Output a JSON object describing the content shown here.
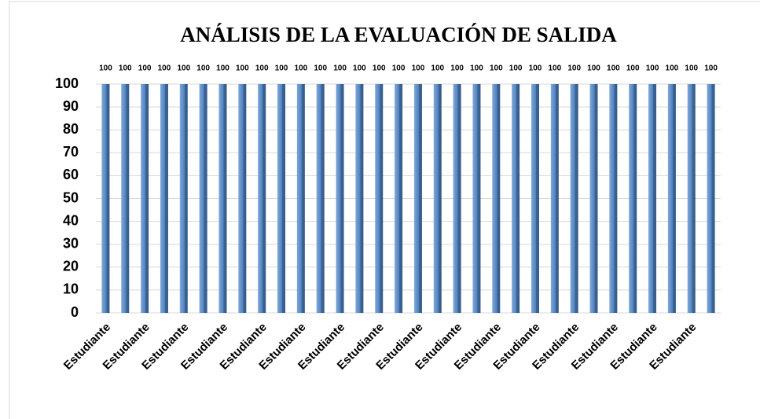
{
  "chart_data": {
    "type": "bar",
    "title": "ANÁLISIS DE LA EVALUACIÓN  DE SALIDA",
    "categories": [
      "Estudiante",
      null,
      "Estudiante",
      null,
      "Estudiante",
      null,
      "Estudiante",
      null,
      "Estudiante",
      null,
      "Estudiante",
      null,
      "Estudiante",
      null,
      "Estudiante",
      null,
      "Estudiante",
      null,
      "Estudiante",
      null,
      "Estudiante",
      null,
      "Estudiante",
      null,
      "Estudiante",
      null,
      "Estudiante",
      null,
      "Estudiante",
      null,
      "Estudiante",
      null
    ],
    "values": [
      100,
      100,
      100,
      100,
      100,
      100,
      100,
      100,
      100,
      100,
      100,
      100,
      100,
      100,
      100,
      100,
      100,
      100,
      100,
      100,
      100,
      100,
      100,
      100,
      100,
      100,
      100,
      100,
      100,
      100,
      100,
      100
    ],
    "color": "#4f81bd",
    "ylim": [
      0,
      100
    ],
    "yticks": [
      0,
      10,
      20,
      30,
      40,
      50,
      60,
      70,
      80,
      90,
      100
    ],
    "grid": true
  }
}
